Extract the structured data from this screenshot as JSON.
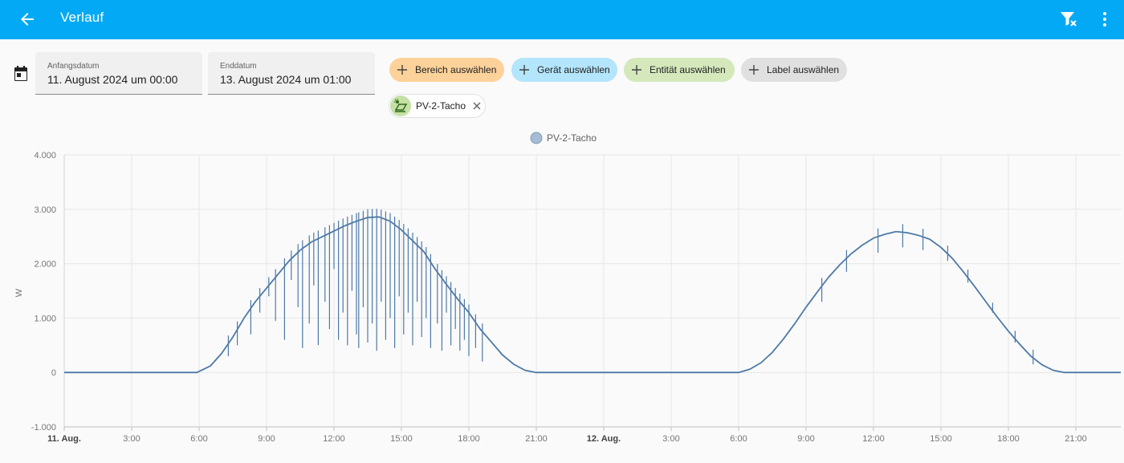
{
  "header": {
    "title": "Verlauf",
    "background": "#03a9f4"
  },
  "icons": {
    "back": "arrow-left-icon",
    "clear_filter": "filter-remove-icon",
    "more": "dots-vertical-icon",
    "calendar": "calendar-icon",
    "entity": "solar-panel-icon"
  },
  "date_range": {
    "start_label": "Anfangsdatum",
    "start_value": "11. August 2024 um 00:00",
    "end_label": "Enddatum",
    "end_value": "13. August 2024 um 01:00"
  },
  "target_chips": [
    {
      "label": "Bereich auswählen",
      "color": "#fdd29a"
    },
    {
      "label": "Gerät auswählen",
      "color": "#b3e5fc"
    },
    {
      "label": "Entität auswählen",
      "color": "#d4e8bc"
    },
    {
      "label": "Label auswählen",
      "color": "#e0e0e0"
    }
  ],
  "selected_entity": {
    "label": "PV-2-Tacho"
  },
  "chart_data": {
    "type": "line",
    "legend_position": "top-center",
    "ylabel": "W",
    "ylim": [
      -1000,
      4000
    ],
    "yticks": [
      "4.000",
      "3.000",
      "2.000",
      "1.000",
      "0",
      "-1.000"
    ],
    "xlim_hours": [
      0,
      47
    ],
    "xticks": [
      {
        "h": 0,
        "label": "11. Aug.",
        "bold": true
      },
      {
        "h": 3,
        "label": "3:00"
      },
      {
        "h": 6,
        "label": "6:00"
      },
      {
        "h": 9,
        "label": "9:00"
      },
      {
        "h": 12,
        "label": "12:00"
      },
      {
        "h": 15,
        "label": "15:00"
      },
      {
        "h": 18,
        "label": "18:00"
      },
      {
        "h": 21,
        "label": "21:00"
      },
      {
        "h": 24,
        "label": "12. Aug.",
        "bold": true
      },
      {
        "h": 27,
        "label": "3:00"
      },
      {
        "h": 30,
        "label": "6:00"
      },
      {
        "h": 33,
        "label": "9:00"
      },
      {
        "h": 36,
        "label": "12:00"
      },
      {
        "h": 39,
        "label": "15:00"
      },
      {
        "h": 42,
        "label": "18:00"
      },
      {
        "h": 45,
        "label": "21:00"
      }
    ],
    "grid": true,
    "series": [
      {
        "name": "PV-2-Tacho",
        "color": "#4e79a7",
        "points": [
          [
            0,
            0
          ],
          [
            5.9,
            0
          ],
          [
            6.5,
            120
          ],
          [
            7.0,
            350
          ],
          [
            7.5,
            650
          ],
          [
            8.0,
            1000
          ],
          [
            8.5,
            1300
          ],
          [
            9.0,
            1550
          ],
          [
            9.5,
            1800
          ],
          [
            10.0,
            2050
          ],
          [
            10.5,
            2250
          ],
          [
            11.0,
            2400
          ],
          [
            11.5,
            2500
          ],
          [
            12.0,
            2600
          ],
          [
            12.5,
            2700
          ],
          [
            13.0,
            2780
          ],
          [
            13.5,
            2850
          ],
          [
            14.0,
            2860
          ],
          [
            14.5,
            2780
          ],
          [
            15.0,
            2620
          ],
          [
            15.5,
            2420
          ],
          [
            16.0,
            2220
          ],
          [
            16.5,
            1900
          ],
          [
            17.0,
            1620
          ],
          [
            17.5,
            1350
          ],
          [
            18.0,
            1100
          ],
          [
            18.5,
            800
          ],
          [
            19.0,
            560
          ],
          [
            19.5,
            320
          ],
          [
            20.0,
            150
          ],
          [
            20.5,
            40
          ],
          [
            21.0,
            0
          ],
          [
            30.0,
            0
          ],
          [
            30.5,
            60
          ],
          [
            31.0,
            180
          ],
          [
            31.5,
            370
          ],
          [
            32.0,
            620
          ],
          [
            32.5,
            900
          ],
          [
            33.0,
            1200
          ],
          [
            33.5,
            1480
          ],
          [
            34.0,
            1750
          ],
          [
            34.5,
            1980
          ],
          [
            35.0,
            2180
          ],
          [
            35.5,
            2340
          ],
          [
            36.0,
            2470
          ],
          [
            36.5,
            2540
          ],
          [
            37.0,
            2590
          ],
          [
            37.5,
            2570
          ],
          [
            38.0,
            2520
          ],
          [
            38.5,
            2450
          ],
          [
            39.0,
            2300
          ],
          [
            39.5,
            2100
          ],
          [
            40.0,
            1850
          ],
          [
            40.5,
            1580
          ],
          [
            41.0,
            1300
          ],
          [
            41.5,
            1020
          ],
          [
            42.0,
            760
          ],
          [
            42.5,
            520
          ],
          [
            43.0,
            300
          ],
          [
            43.5,
            140
          ],
          [
            44.0,
            40
          ],
          [
            44.5,
            0
          ],
          [
            47,
            0
          ]
        ],
        "dips": [
          [
            9.1,
            1400
          ],
          [
            9.4,
            950
          ],
          [
            9.8,
            600
          ],
          [
            10.1,
            1700
          ],
          [
            10.4,
            1200
          ],
          [
            10.6,
            450
          ],
          [
            10.9,
            900
          ],
          [
            11.1,
            1600
          ],
          [
            11.3,
            500
          ],
          [
            11.6,
            1300
          ],
          [
            11.8,
            800
          ],
          [
            12.0,
            1900
          ],
          [
            12.2,
            600
          ],
          [
            12.4,
            1100
          ],
          [
            12.6,
            500
          ],
          [
            12.8,
            1500
          ],
          [
            13.0,
            700
          ],
          [
            13.1,
            450
          ],
          [
            13.3,
            1200
          ],
          [
            13.5,
            550
          ],
          [
            13.7,
            900
          ],
          [
            13.9,
            400
          ],
          [
            14.1,
            1300
          ],
          [
            14.3,
            600
          ],
          [
            14.5,
            1000
          ],
          [
            14.7,
            450
          ],
          [
            14.9,
            1400
          ],
          [
            15.1,
            700
          ],
          [
            15.3,
            1100
          ],
          [
            15.5,
            500
          ],
          [
            15.7,
            1300
          ],
          [
            15.9,
            650
          ],
          [
            16.1,
            1000
          ],
          [
            16.3,
            450
          ],
          [
            16.6,
            900
          ],
          [
            16.8,
            400
          ],
          [
            17.0,
            1100
          ],
          [
            17.2,
            500
          ],
          [
            17.4,
            800
          ],
          [
            17.6,
            400
          ],
          [
            17.8,
            600
          ],
          [
            18.0,
            300
          ],
          [
            18.3,
            450
          ],
          [
            18.6,
            200
          ],
          [
            8.3,
            700
          ],
          [
            8.7,
            1100
          ],
          [
            7.7,
            500
          ],
          [
            7.3,
            300
          ],
          [
            33.7,
            1300
          ],
          [
            34.8,
            1850
          ],
          [
            36.2,
            2200
          ],
          [
            37.3,
            2300
          ],
          [
            38.2,
            2250
          ],
          [
            39.3,
            2050
          ],
          [
            40.2,
            1650
          ],
          [
            41.3,
            1100
          ],
          [
            42.3,
            550
          ],
          [
            43.1,
            150
          ]
        ]
      }
    ]
  }
}
